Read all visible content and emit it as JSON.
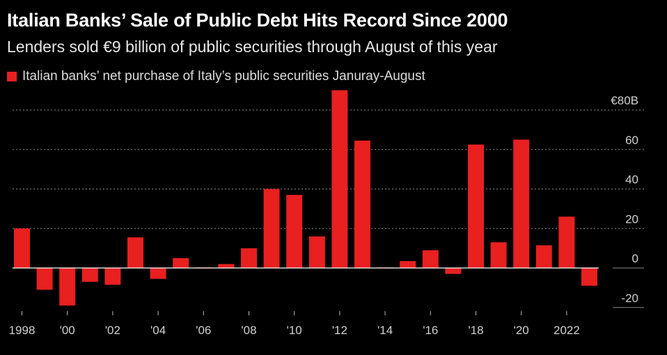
{
  "chart_data": {
    "type": "bar",
    "title": "Italian Banks’ Sale of Public Debt Hits Record Since 2000",
    "subtitle": "Lenders sold €9 billion of public securities through August of this year",
    "legend": [
      "Italian banks’ net purchase of Italy’s public securities Januray-August"
    ],
    "xlabel": "",
    "ylabel": "",
    "ylim": [
      -20,
      80
    ],
    "y_ticks": [
      {
        "value": 80,
        "label": "€80B"
      },
      {
        "value": 60,
        "label": "60"
      },
      {
        "value": 40,
        "label": "40"
      },
      {
        "value": 20,
        "label": "20"
      },
      {
        "value": 0,
        "label": "0"
      },
      {
        "value": -20,
        "label": "-20"
      }
    ],
    "x_ticks": [
      {
        "year": 1998,
        "label": "1998"
      },
      {
        "year": 2000,
        "label": "'00"
      },
      {
        "year": 2002,
        "label": "'02"
      },
      {
        "year": 2004,
        "label": "'04"
      },
      {
        "year": 2006,
        "label": "'06"
      },
      {
        "year": 2008,
        "label": "'08"
      },
      {
        "year": 2010,
        "label": "'10"
      },
      {
        "year": 2012,
        "label": "'12"
      },
      {
        "year": 2014,
        "label": "'14"
      },
      {
        "year": 2016,
        "label": "'16"
      },
      {
        "year": 2018,
        "label": "'18"
      },
      {
        "year": 2020,
        "label": "'20"
      },
      {
        "year": 2022,
        "label": "2022"
      }
    ],
    "categories": [
      1998,
      1999,
      2000,
      2001,
      2002,
      2003,
      2004,
      2005,
      2006,
      2007,
      2008,
      2009,
      2010,
      2011,
      2012,
      2013,
      2014,
      2015,
      2016,
      2017,
      2018,
      2019,
      2020,
      2021,
      2022,
      2023
    ],
    "values": [
      20,
      -11,
      -19,
      -7,
      -8.5,
      15.5,
      -5.5,
      5,
      0.3,
      2,
      10,
      40,
      37,
      16,
      90,
      64.5,
      0.3,
      3.5,
      9,
      -3,
      62.5,
      13,
      65,
      11.5,
      26,
      -9
    ],
    "bar_color": "#e8201f",
    "grid": true,
    "legend_position": "top-left"
  }
}
